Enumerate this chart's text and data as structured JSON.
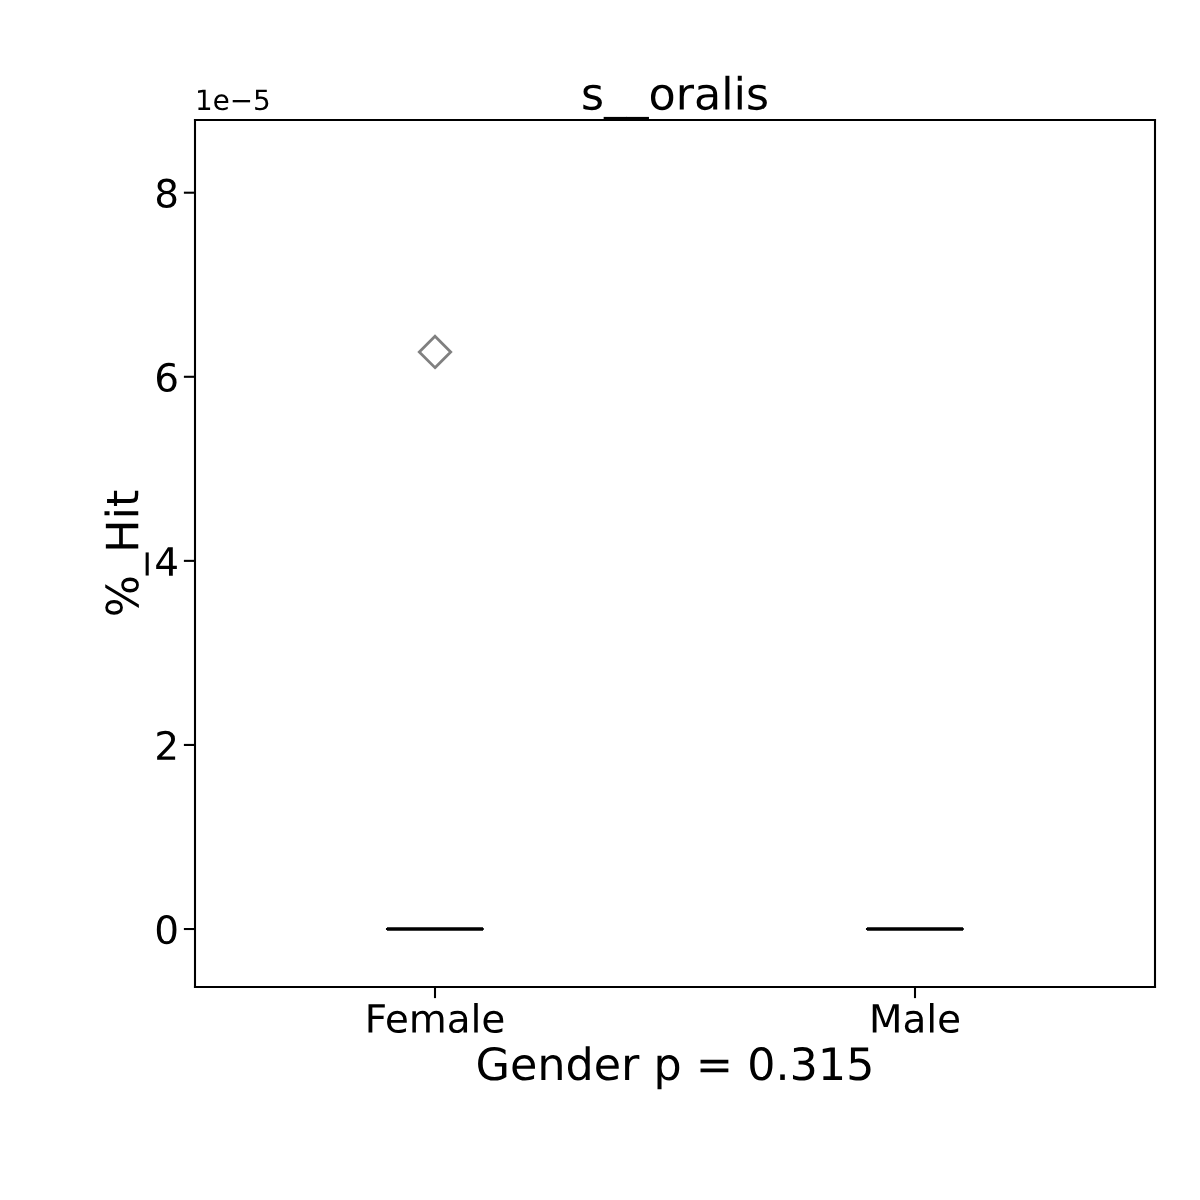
{
  "chart_data": {
    "type": "box",
    "title": "s__oralis",
    "xlabel": "Gender p = 0.315",
    "ylabel": "%_Hit",
    "categories": [
      "Female",
      "Male"
    ],
    "series": [
      {
        "color": "#000000",
        "boxes": [
          {
            "low": 0,
            "q1": 0,
            "median": 0,
            "q3": 0,
            "high": 0,
            "outliers": [
              6.27
            ]
          },
          {
            "low": 0,
            "q1": 0,
            "median": 0,
            "q3": 0,
            "high": 0
          }
        ]
      }
    ],
    "ylim": [
      -0.63,
      8.79
    ],
    "yticks": [
      0,
      2,
      4,
      6,
      8
    ],
    "annotations": [
      "1e−5"
    ],
    "marker": "diamond"
  }
}
